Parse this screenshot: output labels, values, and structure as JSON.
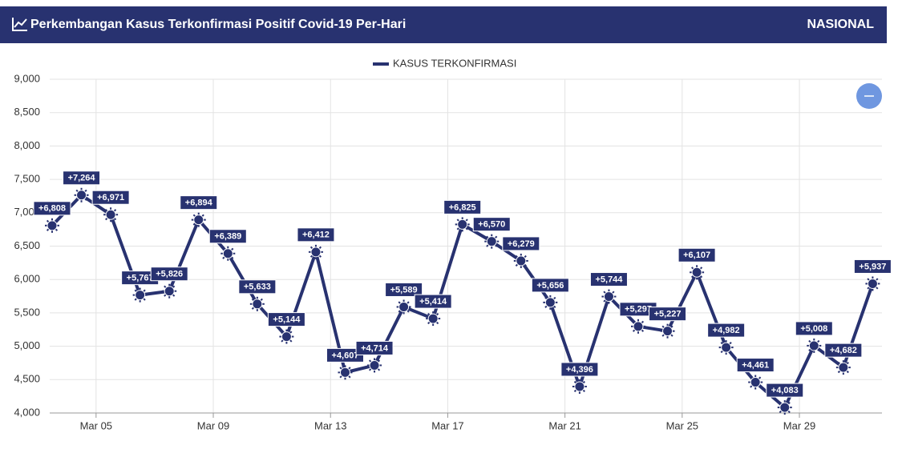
{
  "header": {
    "title": "Perkembangan Kasus Terkonfirmasi Positif Covid-19 Per-Hari",
    "region": "NASIONAL"
  },
  "chart_data": {
    "type": "line",
    "x": [
      "Mar 04",
      "Mar 05",
      "Mar 06",
      "Mar 07",
      "Mar 08",
      "Mar 09",
      "Mar 10",
      "Mar 11",
      "Mar 12",
      "Mar 13",
      "Mar 14",
      "Mar 15",
      "Mar 16",
      "Mar 17",
      "Mar 18",
      "Mar 19",
      "Mar 20",
      "Mar 21",
      "Mar 22",
      "Mar 23",
      "Mar 24",
      "Mar 25",
      "Mar 26",
      "Mar 27",
      "Mar 28",
      "Mar 29",
      "Mar 30",
      "Mar 31",
      "Apr 01"
    ],
    "xticks": [
      "Mar 05",
      "Mar 09",
      "Mar 13",
      "Mar 17",
      "Mar 21",
      "Mar 25",
      "Mar 29"
    ],
    "series": [
      {
        "name": "KASUS TERKONFIRMASI",
        "color": "#283270",
        "values": [
          6808,
          7264,
          6971,
          5767,
          5826,
          6894,
          6389,
          5633,
          5144,
          6412,
          4607,
          4714,
          5589,
          5414,
          6825,
          6570,
          6279,
          5656,
          4396,
          5744,
          5297,
          5227,
          6107,
          4982,
          4461,
          4083,
          5008,
          4682,
          5937
        ],
        "value_labels": [
          "+6,808",
          "+7,264",
          "+6,971",
          "+5,767",
          "+5,826",
          "+6,894",
          "+6,389",
          "+5,633",
          "+5,144",
          "+6,412",
          "+4,607",
          "+4,714",
          "+5,589",
          "+5,414",
          "+6,825",
          "+6,570",
          "+6,279",
          "+5,656",
          "+4,396",
          "+5,744",
          "+5,297",
          "+5,227",
          "+6,107",
          "+4,982",
          "+4,461",
          "+4,083",
          "+5,008",
          "+4,682",
          "+5,937"
        ]
      }
    ],
    "ylim": [
      4000,
      9000
    ],
    "yticks": [
      {
        "value": 4000,
        "label": "4,000"
      },
      {
        "value": 4500,
        "label": "4,500"
      },
      {
        "value": 5000,
        "label": "5,000"
      },
      {
        "value": 5500,
        "label": "5,500"
      },
      {
        "value": 6000,
        "label": "6,000"
      },
      {
        "value": 6500,
        "label": "6,500"
      },
      {
        "value": 7000,
        "label": "7,000"
      },
      {
        "value": 7500,
        "label": "7,500"
      },
      {
        "value": 8000,
        "label": "8,000"
      },
      {
        "value": 8500,
        "label": "8,500"
      },
      {
        "value": 9000,
        "label": "9,000"
      }
    ],
    "grid": true,
    "legend": "top"
  }
}
